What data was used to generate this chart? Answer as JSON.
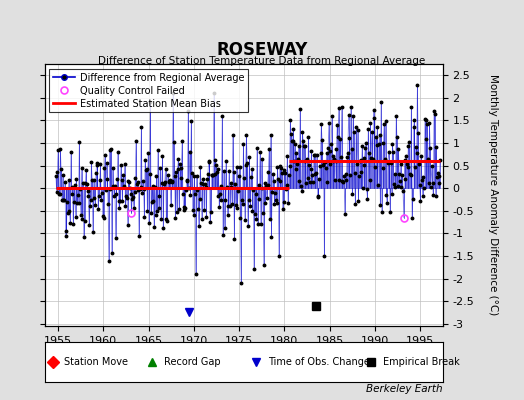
{
  "title": "ROSEWAY",
  "subtitle": "Difference of Station Temperature Data from Regional Average",
  "xlabel_years": [
    1955,
    1960,
    1965,
    1970,
    1975,
    1980,
    1985,
    1990,
    1995
  ],
  "xlim": [
    1953.5,
    1997.5
  ],
  "ylim": [
    -3.05,
    2.75
  ],
  "yticks": [
    -3,
    -2.5,
    -2,
    -1.5,
    -1,
    -0.5,
    0,
    0.5,
    1,
    1.5,
    2,
    2.5
  ],
  "ytick_labels": [
    "-3",
    "-2.5",
    "-2",
    "-1.5",
    "-1",
    "-0.5",
    "0",
    "0.5",
    "1",
    "1.5",
    "2",
    "2.5"
  ],
  "bias_before": 0.0,
  "bias_after": 0.6,
  "bias_break_year": 1980.5,
  "obs_change_year": 1969.5,
  "empirical_break_year": 1983.5,
  "background_color": "#e0e0e0",
  "plot_bg_color": "#ffffff",
  "line_color": "#0000cc",
  "dot_color": "#000000",
  "bias_color": "#ff0000",
  "qc_color": "#ff44ff",
  "ylabel": "Monthly Temperature Anomaly Difference (°C)",
  "credit": "Berkeley Earth",
  "seed": 42
}
